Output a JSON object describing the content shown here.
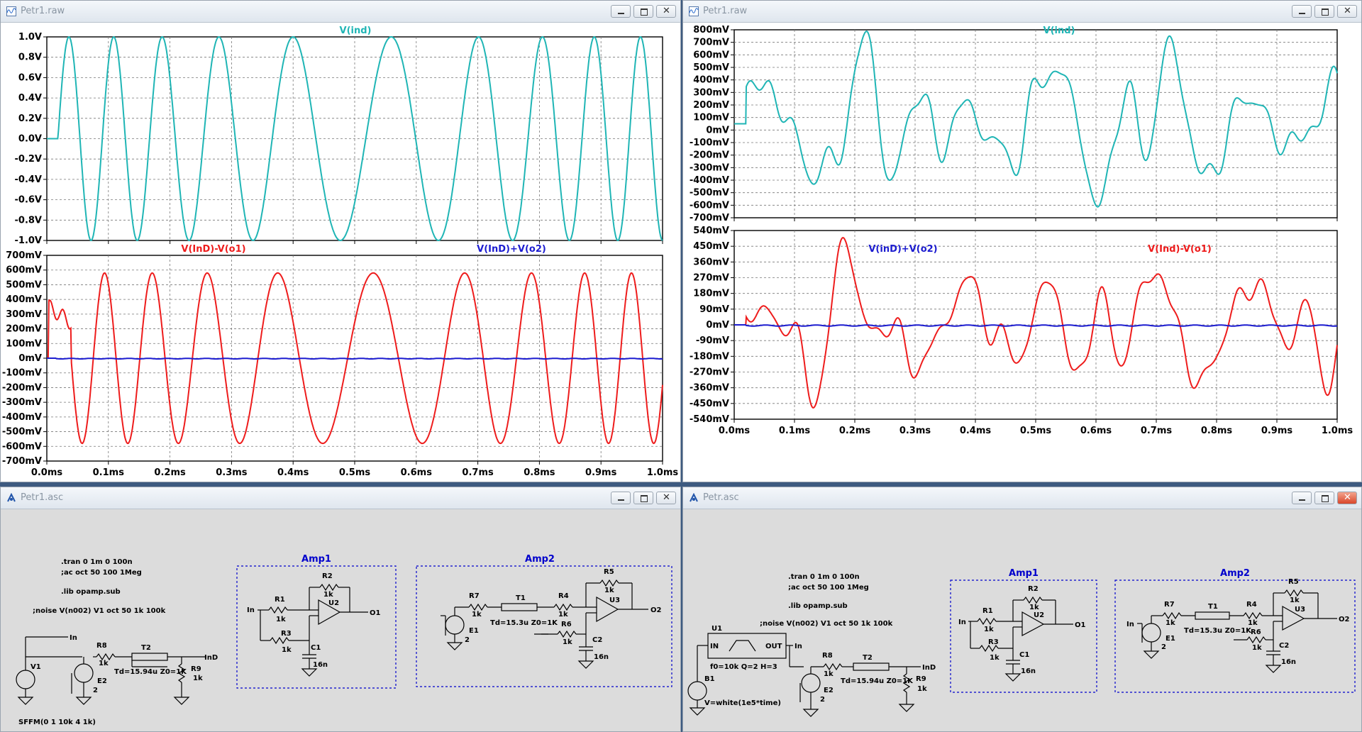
{
  "windows": {
    "raw1_title": "Petr1.raw",
    "raw2_title": "Petr1.raw",
    "asc1_title": "Petr1.asc",
    "asc2_title": "Petr.asc"
  },
  "plot1": {
    "top_trace": "V(ind)",
    "top_yticks": [
      "1.0V",
      "0.8V",
      "0.6V",
      "0.4V",
      "0.2V",
      "0.0V",
      "-0.2V",
      "-0.4V",
      "-0.6V",
      "-0.8V",
      "-1.0V"
    ],
    "bottom_trace_red": "V(InD)-V(o1)",
    "bottom_trace_blue": "V(InD)+V(o2)",
    "bottom_yticks": [
      "700mV",
      "600mV",
      "500mV",
      "400mV",
      "300mV",
      "200mV",
      "100mV",
      "0mV",
      "-100mV",
      "-200mV",
      "-300mV",
      "-400mV",
      "-500mV",
      "-600mV",
      "-700mV"
    ],
    "xticks": [
      "0.0ms",
      "0.1ms",
      "0.2ms",
      "0.3ms",
      "0.4ms",
      "0.5ms",
      "0.6ms",
      "0.7ms",
      "0.8ms",
      "0.9ms",
      "1.0ms"
    ]
  },
  "plot2": {
    "top_trace": "V(ind)",
    "top_yticks": [
      "800mV",
      "700mV",
      "600mV",
      "500mV",
      "400mV",
      "300mV",
      "200mV",
      "100mV",
      "0mV",
      "-100mV",
      "-200mV",
      "-300mV",
      "-400mV",
      "-500mV",
      "-600mV",
      "-700mV"
    ],
    "bottom_trace_blue": "V(inD)+V(o2)",
    "bottom_trace_red": "V(Ind)-V(o1)",
    "bottom_yticks": [
      "540mV",
      "450mV",
      "360mV",
      "270mV",
      "180mV",
      "90mV",
      "0mV",
      "-90mV",
      "-180mV",
      "-270mV",
      "-360mV",
      "-450mV",
      "-540mV"
    ],
    "xticks": [
      "0.0ms",
      "0.1ms",
      "0.2ms",
      "0.3ms",
      "0.4ms",
      "0.5ms",
      "0.6ms",
      "0.7ms",
      "0.8ms",
      "0.9ms",
      "1.0ms"
    ]
  },
  "schem1": {
    "directives": [
      ".tran 0 1m 0 100n",
      ";ac oct 50 100 1Meg",
      ".lib opamp.sub",
      ";noise V(n002) V1 oct 50 1k 100k"
    ],
    "source": "SFFM(0 1 10k 4 1k)",
    "amp1": "Amp1",
    "amp2": "Amp2",
    "labels": {
      "in": "In",
      "in2": "In",
      "ind": "InD",
      "o1": "O1",
      "o2": "O2",
      "v1": "V1",
      "e2": "E2",
      "e2n": "2",
      "r8": "R8",
      "r8v": "1k",
      "t2": "T2",
      "t2v": "Td=15.94u Z0=1K",
      "r9": "R9",
      "r9v": "1k",
      "r1": "R1",
      "r1v": "1k",
      "r2": "R2",
      "r2v": "1k",
      "r3": "R3",
      "r3v": "1k",
      "u2": "U2",
      "c1": "C1",
      "c1v": "16n",
      "r7": "R7",
      "r7v": "1k",
      "e1": "E1",
      "e1n": "2",
      "t1": "T1",
      "t1v": "Td=15.3u Z0=1K",
      "r4": "R4",
      "r4v": "1k",
      "r5": "R5",
      "r5v": "1k",
      "r6": "R6",
      "r6v": "1k",
      "u3": "U3",
      "c2": "C2",
      "c2v": "16n"
    }
  },
  "schem2": {
    "directives": [
      ".tran 0 1m 0 100n",
      ";ac oct 50 100 1Meg",
      ".lib opamp.sub",
      ";noise V(n002) V1 oct 50 1k 100k"
    ],
    "filter": "f0=10k Q=2 H=3",
    "source": "V=white(1e5*time)",
    "amp1": "Amp1",
    "amp2": "Amp2",
    "labels": {
      "u1": "U1",
      "fin": "IN",
      "fout": "OUT",
      "in": "In",
      "in2": "In",
      "in3": "In",
      "ind": "InD",
      "o1": "O1",
      "o2": "O2",
      "b1": "B1",
      "e2": "E2",
      "e2n": "2",
      "r8": "R8",
      "r8v": "1k",
      "t2": "T2",
      "t2v": "Td=15.94u Z0=1K",
      "r9": "R9",
      "r9v": "1k",
      "r1": "R1",
      "r1v": "1k",
      "r2": "R2",
      "r2v": "1k",
      "r3": "R3",
      "r3v": "1k",
      "u2": "U2",
      "c1": "C1",
      "c1v": "16n",
      "r7": "R7",
      "r7v": "1k",
      "e1": "E1",
      "e1n": "2",
      "t1": "T1",
      "t1v": "Td=15.3u Z0=1K",
      "r4": "R4",
      "r4v": "1k",
      "r5": "R5",
      "r5v": "1k",
      "r6": "R6",
      "r6v": "1k",
      "u3": "U3",
      "c2": "C2",
      "c2v": "16n"
    }
  },
  "colors": {
    "cyan": "#1fb5b5",
    "red": "#ee1c1c",
    "blue": "#1c1cd0",
    "schem_blue": "#0000cc"
  }
}
